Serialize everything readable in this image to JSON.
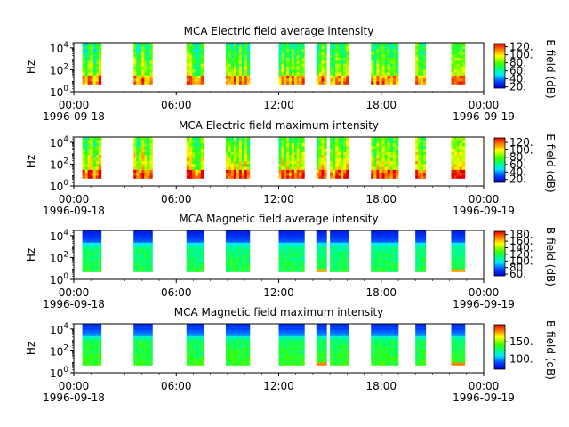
{
  "chart_data": [
    {
      "type": "heatmap",
      "title": "MCA  Electric field average intensity",
      "ylabel": "Hz",
      "y_scale": "log",
      "ylim": [
        1,
        30000
      ],
      "y_ticks": [
        {
          "value": 1,
          "base": "10",
          "exp": "0"
        },
        {
          "value": 100,
          "base": "10",
          "exp": "2"
        },
        {
          "value": 10000,
          "base": "10",
          "exp": "4"
        }
      ],
      "x_ticks": [
        "00:00",
        "06:00",
        "12:00",
        "18:00",
        "00:00"
      ],
      "x_dates": [
        "1996-09-18",
        "1996-09-19"
      ],
      "xlim_hours": [
        0,
        24
      ],
      "colorbar": {
        "label": "E field (dB)",
        "min": 17,
        "max": 128,
        "ticks": [
          "20.",
          "40.",
          "60.",
          "80.",
          "100.",
          "120."
        ]
      },
      "field": "E",
      "data_hour_ranges": [
        [
          0.5,
          1.6
        ],
        [
          3.5,
          4.6
        ],
        [
          6.6,
          7.6
        ],
        [
          8.9,
          10.3
        ],
        [
          12.0,
          13.5
        ],
        [
          14.2,
          14.8
        ],
        [
          15.0,
          16.1
        ],
        [
          17.4,
          19.0
        ],
        [
          20.0,
          20.6
        ],
        [
          22.1,
          22.9
        ]
      ]
    },
    {
      "type": "heatmap",
      "title": "MCA  Electric field maximum intensity",
      "ylabel": "Hz",
      "y_scale": "log",
      "ylim": [
        1,
        30000
      ],
      "y_ticks": [
        {
          "value": 1,
          "base": "10",
          "exp": "0"
        },
        {
          "value": 100,
          "base": "10",
          "exp": "2"
        },
        {
          "value": 10000,
          "base": "10",
          "exp": "4"
        }
      ],
      "x_ticks": [
        "00:00",
        "06:00",
        "12:00",
        "18:00",
        "00:00"
      ],
      "x_dates": [
        "1996-09-18",
        "1996-09-19"
      ],
      "xlim_hours": [
        0,
        24
      ],
      "colorbar": {
        "label": "E field (dB)",
        "min": 12,
        "max": 132,
        "ticks": [
          "20.",
          "40.",
          "60.",
          "80.",
          "100.",
          "120."
        ]
      },
      "field": "E",
      "data_hour_ranges": [
        [
          0.5,
          1.6
        ],
        [
          3.5,
          4.6
        ],
        [
          6.6,
          7.6
        ],
        [
          8.9,
          10.3
        ],
        [
          12.0,
          13.5
        ],
        [
          14.2,
          14.8
        ],
        [
          15.0,
          16.1
        ],
        [
          17.4,
          19.0
        ],
        [
          20.0,
          20.6
        ],
        [
          22.1,
          22.9
        ]
      ]
    },
    {
      "type": "heatmap",
      "title": "MCA  Magnetic field average intensity",
      "ylabel": "Hz",
      "y_scale": "log",
      "ylim": [
        1,
        30000
      ],
      "y_ticks": [
        {
          "value": 1,
          "base": "10",
          "exp": "0"
        },
        {
          "value": 100,
          "base": "10",
          "exp": "2"
        },
        {
          "value": 10000,
          "base": "10",
          "exp": "4"
        }
      ],
      "x_ticks": [
        "00:00",
        "06:00",
        "12:00",
        "18:00",
        "00:00"
      ],
      "x_dates": [
        "1996-09-18",
        "1996-09-19"
      ],
      "xlim_hours": [
        0,
        24
      ],
      "colorbar": {
        "label": "B field (dB)",
        "min": 55,
        "max": 190,
        "ticks": [
          "60.",
          "80.",
          "100.",
          "120.",
          "140.",
          "160.",
          "180."
        ]
      },
      "field": "B",
      "data_hour_ranges": [
        [
          0.5,
          1.6
        ],
        [
          3.5,
          4.6
        ],
        [
          6.6,
          7.6
        ],
        [
          8.9,
          10.3
        ],
        [
          12.0,
          13.5
        ],
        [
          14.2,
          14.8
        ],
        [
          15.0,
          16.1
        ],
        [
          17.4,
          19.0
        ],
        [
          20.0,
          20.6
        ],
        [
          22.1,
          22.9
        ]
      ]
    },
    {
      "type": "heatmap",
      "title": "MCA  Magnetic field maximum intensity",
      "ylabel": "Hz",
      "y_scale": "log",
      "ylim": [
        1,
        30000
      ],
      "y_ticks": [
        {
          "value": 1,
          "base": "10",
          "exp": "0"
        },
        {
          "value": 100,
          "base": "10",
          "exp": "2"
        },
        {
          "value": 10000,
          "base": "10",
          "exp": "4"
        }
      ],
      "x_ticks": [
        "00:00",
        "06:00",
        "12:00",
        "18:00",
        "00:00"
      ],
      "x_dates": [
        "1996-09-18",
        "1996-09-19"
      ],
      "xlim_hours": [
        0,
        24
      ],
      "colorbar": {
        "label": "B field (dB)",
        "min": 70,
        "max": 200,
        "ticks": [
          "100.",
          "150."
        ]
      },
      "field": "B",
      "data_hour_ranges": [
        [
          0.5,
          1.6
        ],
        [
          3.5,
          4.6
        ],
        [
          6.6,
          7.6
        ],
        [
          8.9,
          10.3
        ],
        [
          12.0,
          13.5
        ],
        [
          14.2,
          14.8
        ],
        [
          15.0,
          16.1
        ],
        [
          17.4,
          19.0
        ],
        [
          20.0,
          20.6
        ],
        [
          22.1,
          22.9
        ]
      ]
    }
  ]
}
